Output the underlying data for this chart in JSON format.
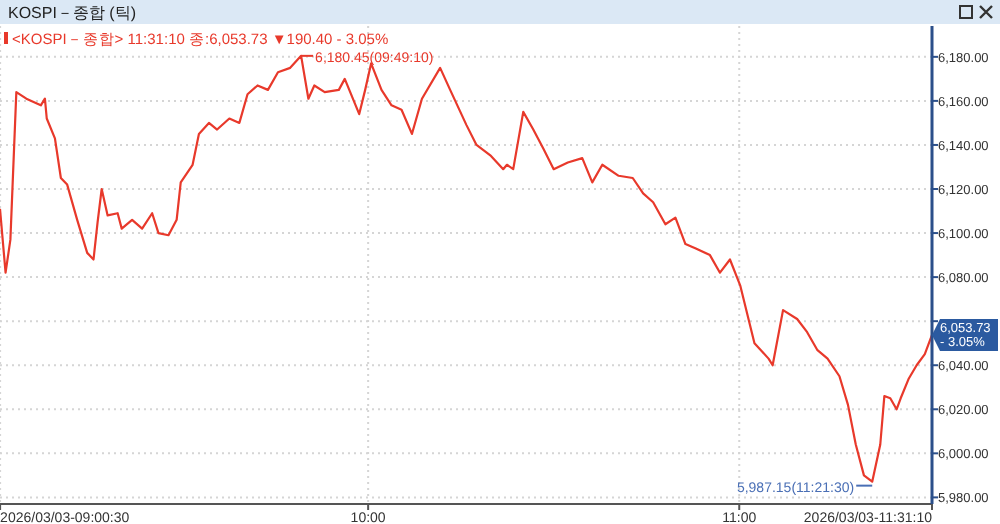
{
  "chart_data": {
    "type": "line",
    "title": "KOSPI－종합 (틱)",
    "subtitle": "<KOSPI－종합> 11:31:10 종:6,053.73 ▼190.40 - 3.05%",
    "x": [
      9.008,
      9.023,
      9.036,
      9.052,
      9.079,
      9.118,
      9.129,
      9.134,
      9.156,
      9.172,
      9.189,
      9.216,
      9.243,
      9.26,
      9.271,
      9.282,
      9.298,
      9.325,
      9.336,
      9.364,
      9.391,
      9.418,
      9.435,
      9.462,
      9.484,
      9.495,
      9.527,
      9.544,
      9.571,
      9.593,
      9.626,
      9.653,
      9.675,
      9.702,
      9.73,
      9.757,
      9.79,
      9.8194,
      9.839,
      9.855,
      9.883,
      9.921,
      9.937,
      9.976,
      9.992,
      10.008,
      10.036,
      10.063,
      10.09,
      10.118,
      10.145,
      10.194,
      10.221,
      10.265,
      10.292,
      10.331,
      10.364,
      10.374,
      10.391,
      10.418,
      10.445,
      10.473,
      10.5,
      10.538,
      10.577,
      10.604,
      10.631,
      10.675,
      10.713,
      10.741,
      10.768,
      10.801,
      10.828,
      10.855,
      10.883,
      10.921,
      10.948,
      10.975,
      11.003,
      11.041,
      11.079,
      11.09,
      11.118,
      11.156,
      11.183,
      11.21,
      11.238,
      11.27,
      11.293,
      11.314,
      11.336,
      11.3583,
      11.38,
      11.391,
      11.407,
      11.424,
      11.435,
      11.457,
      11.478,
      11.5,
      11.5194
    ],
    "series": [
      {
        "color": "#e8392b",
        "values": [
          6111,
          6082,
          6097,
          6164,
          6161,
          6158,
          6161,
          6152,
          6143,
          6125,
          6122,
          6106,
          6091,
          6088,
          6105,
          6120,
          6108,
          6109,
          6102,
          6106,
          6102,
          6109,
          6100,
          6099,
          6106,
          6123,
          6131,
          6145,
          6150,
          6147,
          6152,
          6150,
          6163,
          6167,
          6165,
          6173,
          6175,
          6180.45,
          6161,
          6167,
          6164,
          6165,
          6170,
          6154,
          6165,
          6177,
          6165,
          6158,
          6156,
          6145,
          6161,
          6175,
          6165,
          6149,
          6140,
          6135,
          6129,
          6131,
          6129,
          6155,
          6147,
          6138,
          6129,
          6132,
          6134,
          6123,
          6131,
          6126,
          6125,
          6118,
          6114,
          6104,
          6107,
          6095,
          6093,
          6090,
          6082,
          6088,
          6076,
          6050,
          6043,
          6040,
          6065,
          6061,
          6055,
          6047,
          6043,
          6035,
          6022,
          6004,
          5990,
          5987.15,
          6004,
          6026,
          6025,
          6020,
          6025,
          6034,
          6040,
          6045,
          6053.73
        ]
      }
    ],
    "xlim": [
      9.008,
      11.5194
    ],
    "ylim": [
      5977,
      6194
    ],
    "xticks": [
      {
        "value": 9.0083,
        "label": "2026/03/03-09:00:30"
      },
      {
        "value": 10,
        "label": "10:00"
      },
      {
        "value": 11,
        "label": "11:00"
      },
      {
        "value": 11.5194,
        "label": "2026/03/03-11:31:10"
      }
    ],
    "yticks": [
      {
        "value": 5980,
        "label": "5,980.00"
      },
      {
        "value": 6000,
        "label": "6,000.00"
      },
      {
        "value": 6020,
        "label": "6,020.00"
      },
      {
        "value": 6040,
        "label": "6,040.00"
      },
      {
        "value": 6060,
        "label": null
      },
      {
        "value": 6080,
        "label": "6,080.00"
      },
      {
        "value": 6100,
        "label": "6,100.00"
      },
      {
        "value": 6120,
        "label": "6,120.00"
      },
      {
        "value": 6140,
        "label": "6,140.00"
      },
      {
        "value": 6160,
        "label": "6,160.00"
      },
      {
        "value": 6180,
        "label": "6,180.00"
      }
    ],
    "grid": true,
    "marker": "none",
    "line_style": "solid",
    "annotations": [
      {
        "text": "6,180.45(09:49:10)",
        "x": 9.8194,
        "y": 6180.45
      },
      {
        "text": "5,987.15(11:21:30)",
        "x": 11.3583,
        "y": 5987.15
      },
      {
        "text": "6,053.73\n- 3.05%",
        "x": 11.5194,
        "y": 6053.73
      }
    ]
  }
}
